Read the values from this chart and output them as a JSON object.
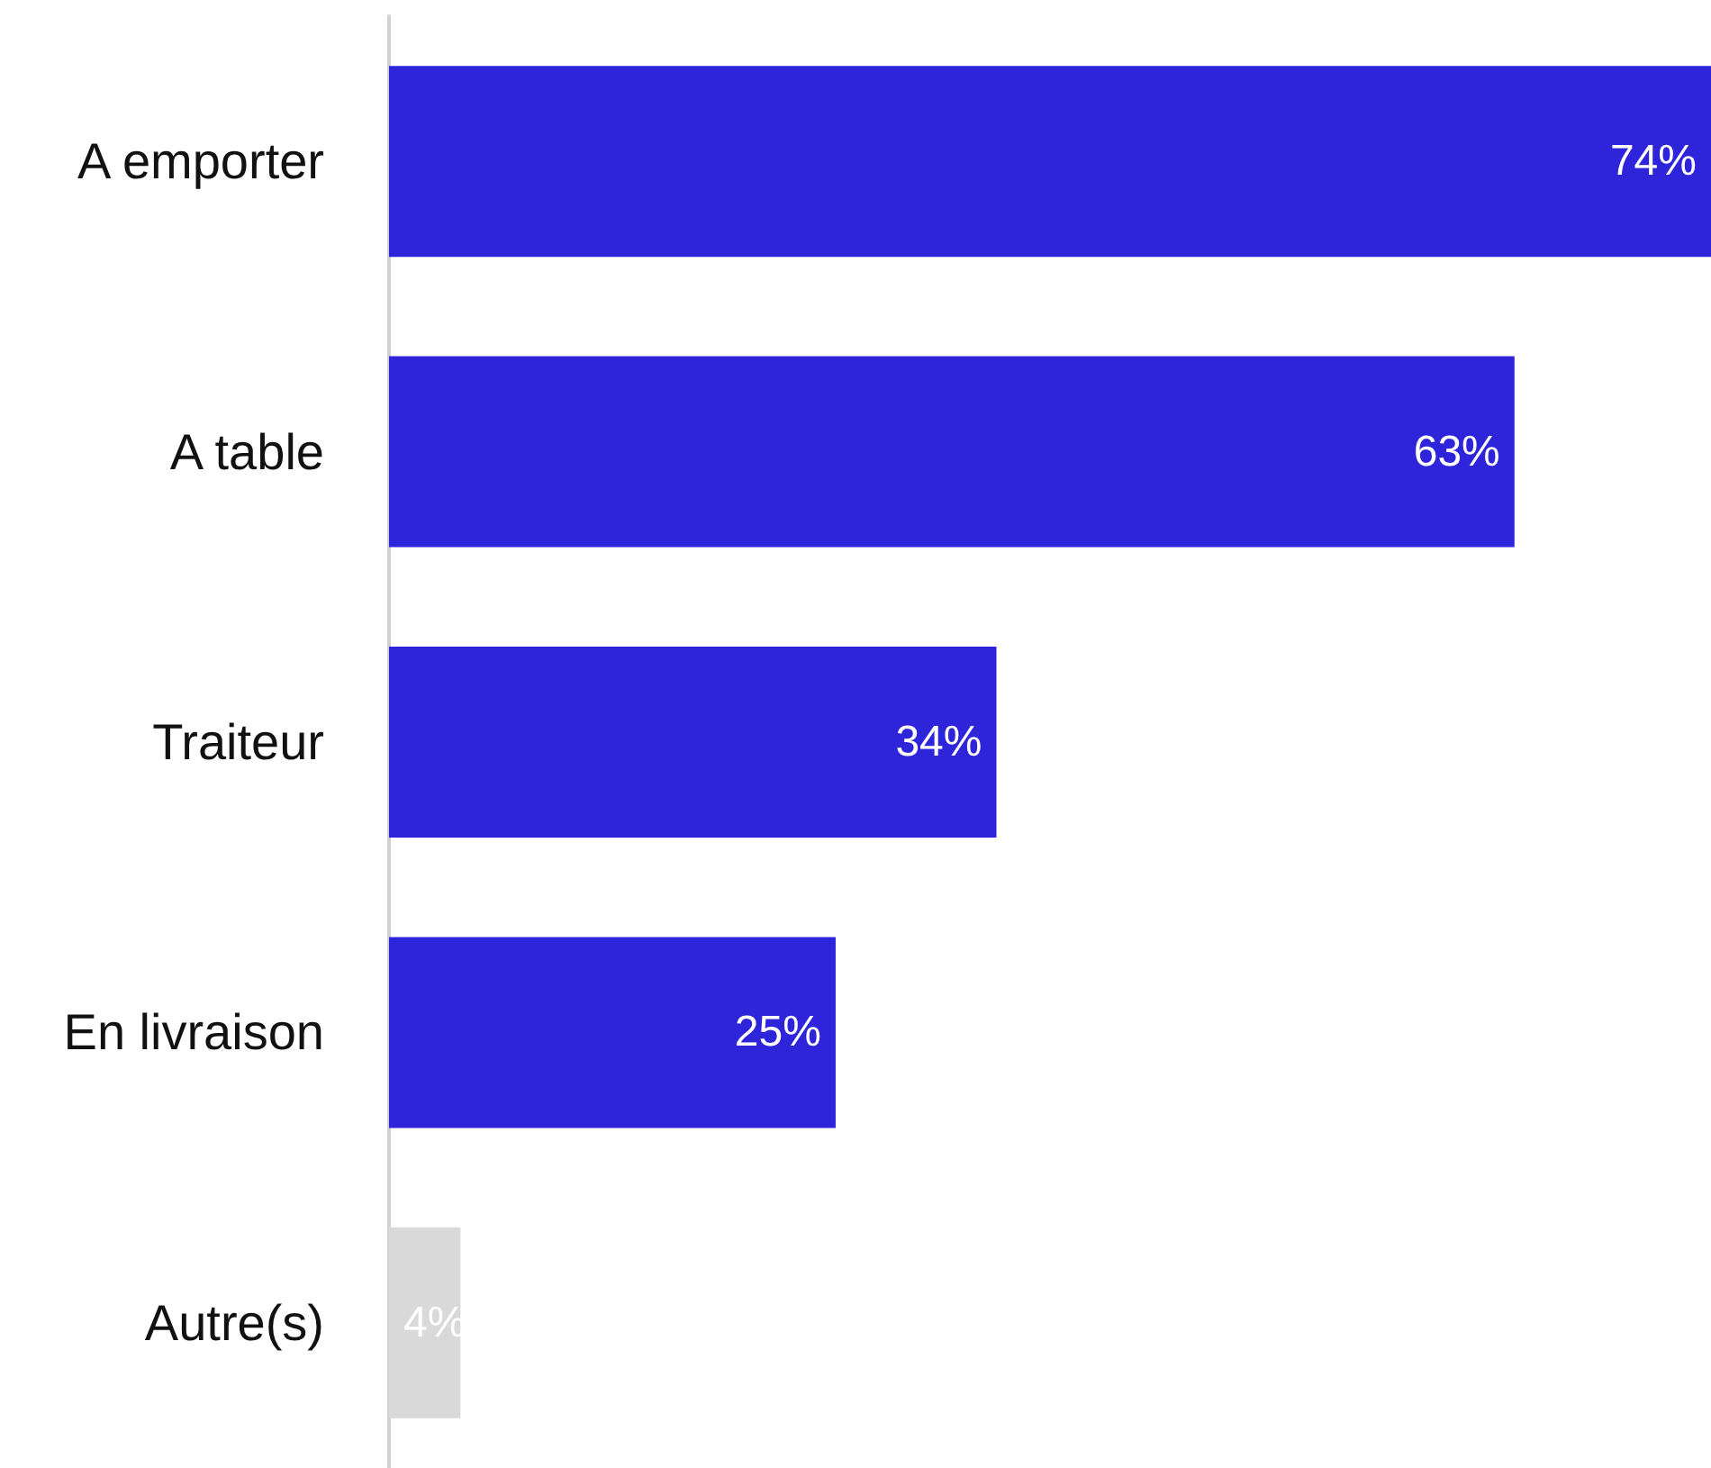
{
  "chart_data": {
    "type": "bar",
    "orientation": "horizontal",
    "categories": [
      "A emporter",
      "A table",
      "Traiteur",
      "En livraison",
      "Autre(s)"
    ],
    "values": [
      74,
      63,
      34,
      25,
      4
    ],
    "value_labels": [
      "74%",
      "63%",
      "34%",
      "25%",
      "4%"
    ],
    "colors": [
      "#2e24d9",
      "#2e24d9",
      "#2e24d9",
      "#2e24d9",
      "#d9d9d9"
    ],
    "xlim": [
      0,
      74
    ],
    "tick_labels": "y"
  }
}
